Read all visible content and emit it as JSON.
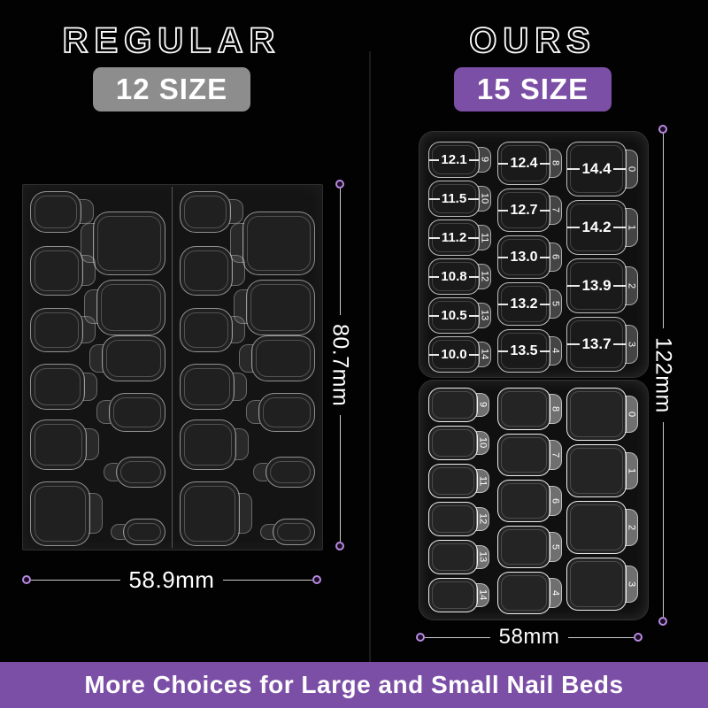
{
  "left_panel": {
    "title": "REGULAR",
    "badge": "12 SIZE",
    "width_label": "58.9mm",
    "height_label": "80.7mm"
  },
  "right_panel": {
    "title": "OURS",
    "badge": "15 SIZE",
    "width_label": "58mm",
    "height_label": "122mm",
    "top_sheet": {
      "columns": [
        {
          "tabs": [
            {
              "mm": "12.1",
              "size": "9"
            },
            {
              "mm": "11.5",
              "size": "10"
            },
            {
              "mm": "11.2",
              "size": "11"
            },
            {
              "mm": "10.8",
              "size": "12"
            },
            {
              "mm": "10.5",
              "size": "13"
            },
            {
              "mm": "10.0",
              "size": "14"
            }
          ]
        },
        {
          "tabs": [
            {
              "mm": "12.4",
              "size": "8"
            },
            {
              "mm": "12.7",
              "size": "7"
            },
            {
              "mm": "13.0",
              "size": "6"
            },
            {
              "mm": "13.2",
              "size": "5"
            },
            {
              "mm": "13.5",
              "size": "4"
            }
          ]
        },
        {
          "tabs": [
            {
              "mm": "14.4",
              "size": "0"
            },
            {
              "mm": "14.2",
              "size": "1"
            },
            {
              "mm": "13.9",
              "size": "2"
            },
            {
              "mm": "13.7",
              "size": "3"
            }
          ]
        }
      ]
    },
    "bottom_sheet": {
      "columns": [
        {
          "tabs": [
            {
              "size": "9"
            },
            {
              "size": "10"
            },
            {
              "size": "11"
            },
            {
              "size": "12"
            },
            {
              "size": "13"
            },
            {
              "size": "14"
            }
          ]
        },
        {
          "tabs": [
            {
              "size": "8"
            },
            {
              "size": "7"
            },
            {
              "size": "6"
            },
            {
              "size": "5"
            },
            {
              "size": "4"
            }
          ]
        },
        {
          "tabs": [
            {
              "size": "0"
            },
            {
              "size": "1"
            },
            {
              "size": "2"
            },
            {
              "size": "3"
            }
          ]
        }
      ]
    }
  },
  "banner": {
    "text": "More Choices for Large and Small Nail Beds"
  },
  "colors": {
    "accent_purple": "#7c4fa6",
    "badge_gray": "#8d8d8d",
    "dimension_dot": "#b98ae0"
  }
}
